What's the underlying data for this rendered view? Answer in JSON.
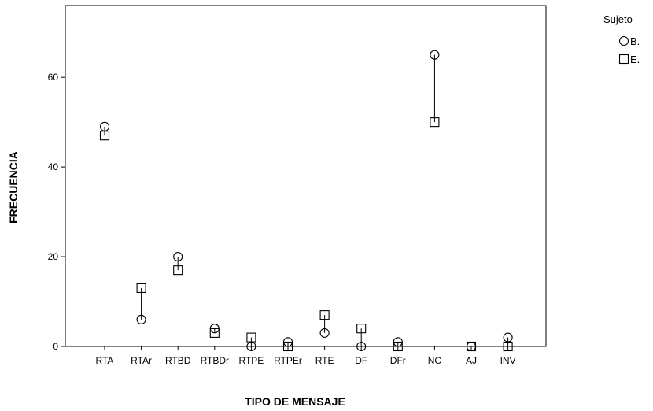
{
  "chart_data": {
    "type": "scatter",
    "title": "",
    "xlabel": "TIPO DE MENSAJE",
    "ylabel": "FRECUENCIA",
    "categories": [
      "RTA",
      "RTAr",
      "RTBD",
      "RTBDr",
      "RTPE",
      "RTPEr",
      "RTE",
      "DF",
      "DFr",
      "NC",
      "AJ",
      "INV"
    ],
    "ylim": [
      0,
      76
    ],
    "yticks": [
      0,
      20,
      40,
      60
    ],
    "grid": false,
    "legend": {
      "title": "Sujeto",
      "position": "top-right",
      "entries": [
        {
          "label": "B.",
          "marker": "circle"
        },
        {
          "label": "E.",
          "marker": "square"
        }
      ]
    },
    "series": [
      {
        "name": "B.",
        "marker": "circle",
        "values": [
          49,
          6,
          20,
          4,
          0,
          1,
          3,
          0,
          1,
          65,
          0,
          2
        ]
      },
      {
        "name": "E.",
        "marker": "square",
        "values": [
          47,
          13,
          17,
          3,
          2,
          0,
          7,
          4,
          0,
          50,
          0,
          0
        ]
      }
    ],
    "connect_series_per_category": true,
    "colors": {
      "marks": "#000000",
      "background": "#ffffff"
    }
  }
}
